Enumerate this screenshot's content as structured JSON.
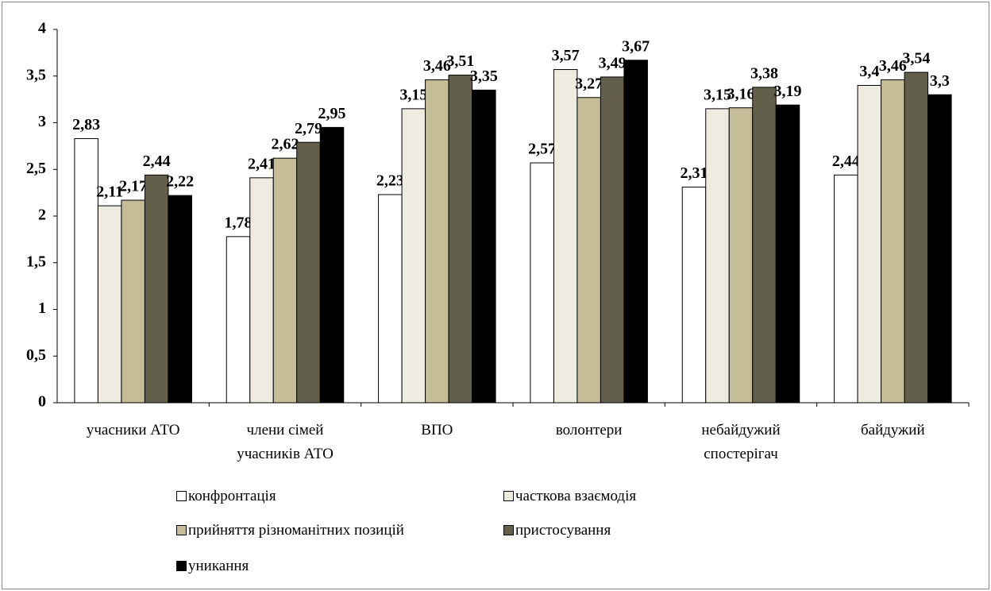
{
  "chart_data": {
    "type": "bar",
    "categories": [
      "учасники АТО",
      "члени сімей учасників АТО",
      "ВПО",
      "волонтери",
      "небайдужий спостерігач",
      "байдужий"
    ],
    "series": [
      {
        "name": "конфронтація",
        "color": "#ffffff",
        "values": [
          2.83,
          1.78,
          2.23,
          2.57,
          2.31,
          2.44
        ],
        "value_labels": [
          "2,83",
          "1,78",
          "2,23",
          "2,57",
          "2,31",
          "2,44"
        ]
      },
      {
        "name": "часткова взаємодія",
        "color": "#eeece1",
        "values": [
          2.11,
          2.41,
          3.15,
          3.57,
          3.15,
          3.4
        ],
        "value_labels": [
          "2,11",
          "2,41",
          "3,15",
          "3,57",
          "3,15",
          "3,4"
        ]
      },
      {
        "name": "прийняття різноманітних позицій",
        "color": "#c4bd97",
        "values": [
          2.17,
          2.62,
          3.46,
          3.27,
          3.16,
          3.46
        ],
        "value_labels": [
          "2,17",
          "2,62",
          "3,46",
          "3,27",
          "3,16",
          "3,46"
        ]
      },
      {
        "name": "пристосування",
        "color": "#625f4a",
        "values": [
          2.44,
          2.79,
          3.51,
          3.49,
          3.38,
          3.54
        ],
        "value_labels": [
          "2,44",
          "2,79",
          "3,51",
          "3,49",
          "3,38",
          "3,54"
        ]
      },
      {
        "name": "уникання",
        "color": "#000000",
        "values": [
          2.22,
          2.95,
          3.35,
          3.67,
          3.19,
          3.3
        ],
        "value_labels": [
          "2,22",
          "2,95",
          "3,35",
          "3,67",
          "3,19",
          "3,3"
        ]
      }
    ],
    "ylim": [
      0,
      4
    ],
    "yticks": [
      0,
      {
        "value": 0.5,
        "label": "0,5"
      },
      1,
      {
        "value": 1.5,
        "label": "1,5"
      },
      2,
      {
        "value": 2.5,
        "label": "2,5"
      },
      3,
      {
        "value": 3.5,
        "label": "3,5"
      },
      4
    ],
    "legend": "bottom"
  }
}
